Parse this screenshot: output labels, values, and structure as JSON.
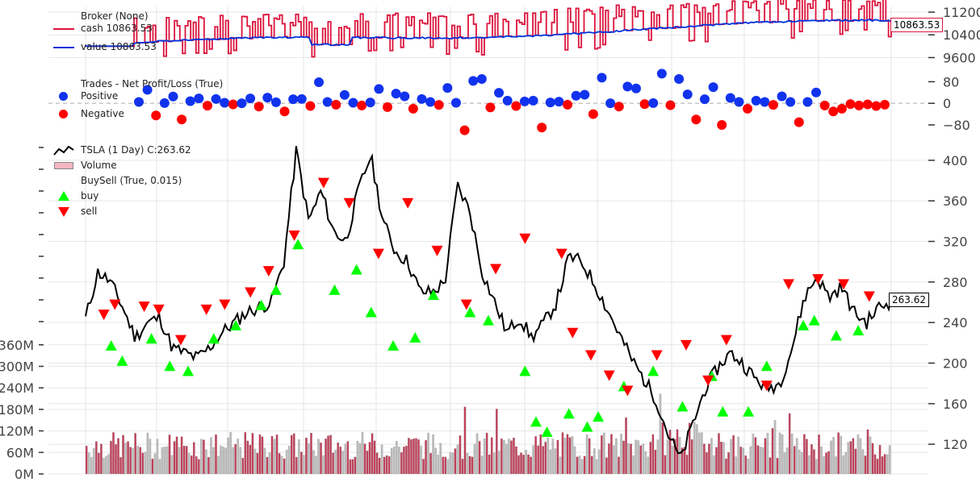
{
  "chart_data": [
    {
      "type": "line",
      "panel": "broker",
      "legend": {
        "title": "Broker (None)",
        "cash_label": "cash 10863.53",
        "value_label": "value 10863.53"
      },
      "yticks": [
        9600,
        10400,
        11200
      ],
      "ylim": [
        9300,
        11400
      ],
      "last_value_label": "10863.53",
      "colors": {
        "cash": "#dc143c",
        "value": "#0033dd"
      },
      "start_value": 10000,
      "end_value": 10863.53,
      "n": 300
    },
    {
      "type": "scatter",
      "panel": "trades",
      "legend": {
        "title": "Trades - Net Profit/Loss (True)",
        "positive": "Positive",
        "negative": "Negative"
      },
      "yticks": [
        -80,
        0,
        80
      ],
      "ylim": [
        -110,
        120
      ],
      "colors": {
        "positive": "#1133ee",
        "negative": "#ff0000"
      },
      "positive_values": [
        5,
        50,
        1,
        25,
        8,
        18,
        16,
        2,
        0,
        18,
        21,
        4,
        15,
        16,
        78,
        5,
        31,
        2,
        3,
        53,
        36,
        26,
        16,
        5,
        57,
        2,
        83,
        90,
        39,
        10,
        7,
        10,
        3,
        6,
        28,
        32,
        95,
        0,
        62,
        55,
        1,
        110,
        90,
        33,
        15,
        60,
        20,
        5,
        10,
        5,
        26,
        5,
        5,
        40
      ],
      "negative_values": [
        -45,
        -60,
        -9,
        -4,
        -12,
        -30,
        -10,
        -5,
        -8,
        -14,
        -20,
        -6,
        -100,
        -15,
        -10,
        -90,
        -5,
        -40,
        -12,
        -3,
        -7,
        -60,
        -80,
        -20,
        -6,
        -70,
        -8,
        -30,
        -20,
        -3,
        -8,
        -4,
        -10,
        -5
      ]
    },
    {
      "type": "line",
      "panel": "price",
      "legend": {
        "title": "TSLA (1 Day) C:263.62",
        "volume": "Volume",
        "buysell": "BuySell (True, 0.015)",
        "buy": "buy",
        "sell": "sell"
      },
      "yticks": [
        120,
        160,
        200,
        240,
        280,
        320,
        360,
        400
      ],
      "ylim": [
        105,
        415
      ],
      "last_close": 263.62,
      "colors": {
        "close": "#000000",
        "buy": "#00ff00",
        "sell": "#ff0000"
      },
      "close_anchors": [
        244,
        290,
        280,
        255,
        225,
        240,
        245,
        215,
        210,
        205,
        215,
        230,
        240,
        250,
        255,
        260,
        300,
        410,
        340,
        370,
        330,
        320,
        370,
        405,
        340,
        310,
        300,
        270,
        270,
        280,
        375,
        350,
        290,
        260,
        230,
        245,
        225,
        240,
        260,
        305,
        300,
        280,
        255,
        230,
        205,
        185,
        165,
        130,
        105,
        140,
        175,
        195,
        210,
        200,
        185,
        175,
        180,
        215,
        265,
        285,
        265,
        275,
        250,
        240,
        255,
        260
      ],
      "buy_markers": [
        [
          7,
          225
        ],
        [
          10,
          210
        ],
        [
          18,
          232
        ],
        [
          23,
          205
        ],
        [
          28,
          200
        ],
        [
          35,
          232
        ],
        [
          41,
          245
        ],
        [
          48,
          265
        ],
        [
          52,
          280
        ],
        [
          58,
          325
        ],
        [
          68,
          280
        ],
        [
          74,
          300
        ],
        [
          78,
          258
        ],
        [
          84,
          225
        ],
        [
          90,
          233
        ],
        [
          95,
          275
        ],
        [
          105,
          258
        ],
        [
          110,
          250
        ],
        [
          120,
          200
        ],
        [
          123,
          150
        ],
        [
          126,
          140
        ],
        [
          132,
          158
        ],
        [
          137,
          145
        ],
        [
          140,
          155
        ],
        [
          147,
          185
        ],
        [
          155,
          200
        ],
        [
          163,
          165
        ],
        [
          171,
          195
        ],
        [
          174,
          160
        ],
        [
          181,
          160
        ],
        [
          186,
          205
        ],
        [
          196,
          245
        ],
        [
          199,
          250
        ],
        [
          205,
          235
        ],
        [
          211,
          240
        ]
      ],
      "sell_markers": [
        [
          5,
          240
        ],
        [
          8,
          250
        ],
        [
          16,
          248
        ],
        [
          20,
          245
        ],
        [
          26,
          215
        ],
        [
          33,
          245
        ],
        [
          38,
          250
        ],
        [
          45,
          262
        ],
        [
          50,
          283
        ],
        [
          57,
          318
        ],
        [
          65,
          370
        ],
        [
          72,
          350
        ],
        [
          80,
          300
        ],
        [
          88,
          350
        ],
        [
          96,
          303
        ],
        [
          104,
          250
        ],
        [
          112,
          285
        ],
        [
          120,
          315
        ],
        [
          130,
          300
        ],
        [
          133,
          222
        ],
        [
          138,
          200
        ],
        [
          143,
          180
        ],
        [
          148,
          165
        ],
        [
          156,
          200
        ],
        [
          164,
          210
        ],
        [
          170,
          175
        ],
        [
          175,
          215
        ],
        [
          186,
          170
        ],
        [
          192,
          270
        ],
        [
          200,
          275
        ],
        [
          207,
          270
        ],
        [
          214,
          258
        ]
      ]
    },
    {
      "type": "bar",
      "panel": "volume",
      "yticks": [
        "0M",
        "60M",
        "120M",
        "180M",
        "240M",
        "300M",
        "360M"
      ],
      "ylim": [
        0,
        400
      ],
      "typical_volume_m": 90,
      "colors": {
        "up": "#bbbbbb",
        "down": "#c0405a"
      }
    }
  ]
}
